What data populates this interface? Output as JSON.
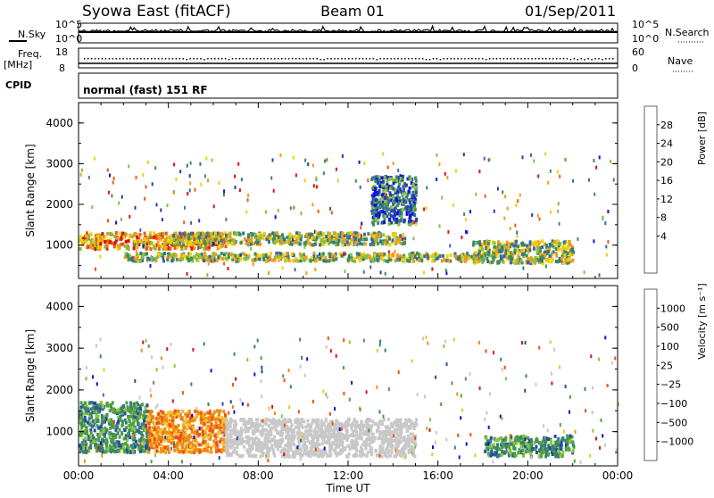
{
  "header": {
    "station": "Syowa East (fitACF)",
    "beam": "Beam 01",
    "date": "01/Sep/2011"
  },
  "panels": {
    "nsky_label": "N.Sky",
    "nsky_ticks": [
      "10^5",
      "10^0"
    ],
    "nsearch_label": "N.Search",
    "nsearch_ticks": [
      "10^5",
      "10^0"
    ],
    "freq_label": "Freq.",
    "freq_unit": "[MHz]",
    "freq_ticks": [
      "18",
      "8"
    ],
    "nave_label": "Nave",
    "nave_ticks": [
      "60",
      "0"
    ],
    "cpid_label": "CPID",
    "cpid_value": "normal (fast) 151 RF"
  },
  "colors": {
    "power": [
      "#1010e0",
      "#2040b0",
      "#3a6b9a",
      "#3d8f5a",
      "#88c040",
      "#f2d000",
      "#f09a20",
      "#ee5a10",
      "#e01010"
    ],
    "velocity": [
      "#e01010",
      "#f05010",
      "#f08c10",
      "#f2c22a",
      "#c8c8c8",
      "#c8c8c8",
      "#8cc83c",
      "#50a040",
      "#3b7f78",
      "#2050a0",
      "#1010d0"
    ]
  },
  "chart_data": [
    {
      "type": "heatmap",
      "id": "power",
      "ylabel": "Slant Range [km]",
      "yticks": [
        "4000",
        "3000",
        "2000",
        "1000"
      ],
      "ylim": [
        180,
        4500
      ],
      "xticks": [
        "00:00",
        "04:00",
        "08:00",
        "12:00",
        "16:00",
        "20:00",
        "00:00"
      ],
      "xlim": [
        0,
        24
      ],
      "colorbar": {
        "label": "Power [dB]",
        "ticks": [
          "28",
          "24",
          "20",
          "16",
          "12",
          "8",
          "4"
        ]
      },
      "features": [
        {
          "t0": 0.0,
          "t1": 6.5,
          "r0": 900,
          "r1": 1300,
          "level": "high"
        },
        {
          "t0": 4.0,
          "t1": 14.5,
          "r0": 1000,
          "r1": 1300,
          "level": "mid"
        },
        {
          "t0": 2.0,
          "t1": 18.0,
          "r0": 600,
          "r1": 800,
          "level": "mid"
        },
        {
          "t0": 13.0,
          "t1": 15.0,
          "r0": 1500,
          "r1": 2700,
          "level": "low"
        },
        {
          "t0": 17.5,
          "t1": 22.0,
          "r0": 550,
          "r1": 1100,
          "level": "mid"
        }
      ]
    },
    {
      "type": "heatmap",
      "id": "velocity",
      "ylabel": "Slant Range [km]",
      "xlabel": "Time UT",
      "yticks": [
        "4000",
        "3000",
        "2000",
        "1000"
      ],
      "ylim": [
        180,
        4500
      ],
      "xticks": [
        "00:00",
        "04:00",
        "08:00",
        "12:00",
        "16:00",
        "20:00",
        "00:00"
      ],
      "xlim": [
        0,
        24
      ],
      "colorbar": {
        "label": "Velocity [m s⁻¹]",
        "ticks": [
          "1000",
          "500",
          "100",
          "25",
          "−25",
          "−100",
          "−500",
          "−1000"
        ]
      },
      "features": [
        {
          "t0": 3.0,
          "t1": 6.5,
          "r0": 500,
          "r1": 1500,
          "level": "orange"
        },
        {
          "t0": 6.5,
          "t1": 15.0,
          "r0": 400,
          "r1": 1300,
          "level": "gray"
        },
        {
          "t0": 0.0,
          "t1": 3.0,
          "r0": 500,
          "r1": 1700,
          "level": "green"
        },
        {
          "t0": 18.0,
          "t1": 22.0,
          "r0": 400,
          "r1": 900,
          "level": "green"
        }
      ]
    }
  ]
}
